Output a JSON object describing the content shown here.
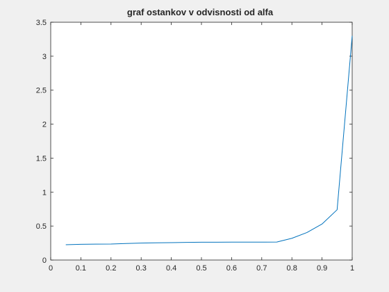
{
  "chart_data": {
    "type": "line",
    "title": "graf ostankov v odvisnosti od alfa",
    "xlabel": "",
    "ylabel": "",
    "xlim": [
      0,
      1
    ],
    "ylim": [
      0,
      3.5
    ],
    "xticks": [
      "0",
      "0.1",
      "0.2",
      "0.3",
      "0.4",
      "0.5",
      "0.6",
      "0.7",
      "0.8",
      "0.9",
      "1"
    ],
    "yticks": [
      "0",
      "0.5",
      "1",
      "1.5",
      "2",
      "2.5",
      "3",
      "3.5"
    ],
    "grid": false,
    "series": [
      {
        "name": "",
        "color": "#0072bd",
        "x": [
          0.05,
          0.1,
          0.15,
          0.2,
          0.25,
          0.3,
          0.35,
          0.4,
          0.45,
          0.5,
          0.55,
          0.6,
          0.65,
          0.7,
          0.75,
          0.8,
          0.85,
          0.9,
          0.95,
          1.0
        ],
        "y": [
          0.225,
          0.232,
          0.234,
          0.236,
          0.243,
          0.25,
          0.253,
          0.256,
          0.26,
          0.262,
          0.262,
          0.263,
          0.263,
          0.263,
          0.265,
          0.32,
          0.405,
          0.53,
          0.74,
          3.3
        ]
      }
    ]
  }
}
